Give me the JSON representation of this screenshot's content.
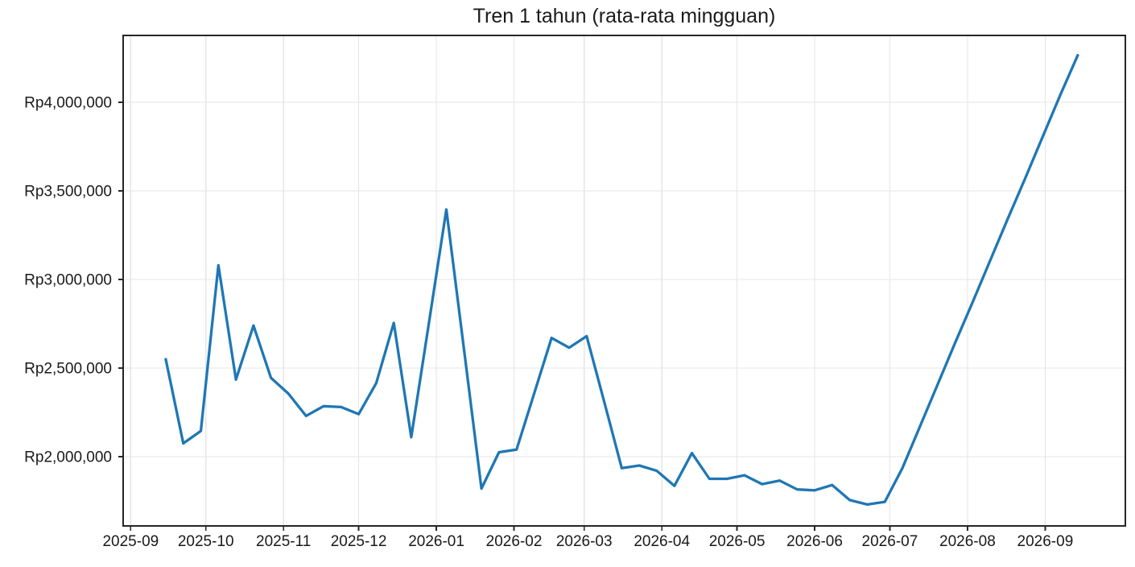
{
  "chart_data": {
    "type": "line",
    "title": "Tren 1 tahun (rata-rata mingguan)",
    "legend": "none",
    "grid": true,
    "grid_color": "#e5e5e5",
    "axis_color": "#262626",
    "background_color": "#ffffff",
    "x_axis": {
      "kind": "date",
      "range": [
        "2025-08-29",
        "2026-10-03"
      ],
      "ticks": [
        {
          "date": "2025-09-01",
          "label": "2025-09"
        },
        {
          "date": "2025-10-01",
          "label": "2025-10"
        },
        {
          "date": "2025-11-01",
          "label": "2025-11"
        },
        {
          "date": "2025-12-01",
          "label": "2025-12"
        },
        {
          "date": "2026-01-01",
          "label": "2026-01"
        },
        {
          "date": "2026-02-01",
          "label": "2026-02"
        },
        {
          "date": "2026-03-01",
          "label": "2026-03"
        },
        {
          "date": "2026-04-01",
          "label": "2026-04"
        },
        {
          "date": "2026-05-01",
          "label": "2026-05"
        },
        {
          "date": "2026-06-01",
          "label": "2026-06"
        },
        {
          "date": "2026-07-01",
          "label": "2026-07"
        },
        {
          "date": "2026-08-01",
          "label": "2026-08"
        },
        {
          "date": "2026-09-01",
          "label": "2026-09"
        }
      ]
    },
    "y_axis": {
      "kind": "currency_idr",
      "range": [
        1609000,
        4377000
      ],
      "ticks": [
        {
          "value": 2000000,
          "label": "Rp2,000,000"
        },
        {
          "value": 2500000,
          "label": "Rp2,500,000"
        },
        {
          "value": 3000000,
          "label": "Rp3,000,000"
        },
        {
          "value": 3500000,
          "label": "Rp3,500,000"
        },
        {
          "value": 4000000,
          "label": "Rp4,000,000"
        }
      ]
    },
    "series": [
      {
        "name": "rata-rata mingguan",
        "color": "#1f77b4",
        "points": [
          {
            "date": "2025-09-15",
            "value": 2550000
          },
          {
            "date": "2025-09-22",
            "value": 2075000
          },
          {
            "date": "2025-09-29",
            "value": 2145000
          },
          {
            "date": "2025-10-06",
            "value": 3080000
          },
          {
            "date": "2025-10-13",
            "value": 2435000
          },
          {
            "date": "2025-10-20",
            "value": 2740000
          },
          {
            "date": "2025-10-27",
            "value": 2445000
          },
          {
            "date": "2025-11-03",
            "value": 2355000
          },
          {
            "date": "2025-11-10",
            "value": 2230000
          },
          {
            "date": "2025-11-17",
            "value": 2285000
          },
          {
            "date": "2025-11-24",
            "value": 2280000
          },
          {
            "date": "2025-12-01",
            "value": 2240000
          },
          {
            "date": "2025-12-08",
            "value": 2415000
          },
          {
            "date": "2025-12-15",
            "value": 2755000
          },
          {
            "date": "2025-12-22",
            "value": 2110000
          },
          {
            "date": "2025-12-29",
            "value": 2750000
          },
          {
            "date": "2026-01-05",
            "value": 3395000
          },
          {
            "date": "2026-01-12",
            "value": 2610000
          },
          {
            "date": "2026-01-19",
            "value": 1820000
          },
          {
            "date": "2026-01-26",
            "value": 2025000
          },
          {
            "date": "2026-02-02",
            "value": 2040000
          },
          {
            "date": "2026-02-09",
            "value": 2355000
          },
          {
            "date": "2026-02-16",
            "value": 2670000
          },
          {
            "date": "2026-02-23",
            "value": 2615000
          },
          {
            "date": "2026-03-02",
            "value": 2680000
          },
          {
            "date": "2026-03-09",
            "value": 2310000
          },
          {
            "date": "2026-03-16",
            "value": 1935000
          },
          {
            "date": "2026-03-23",
            "value": 1950000
          },
          {
            "date": "2026-03-30",
            "value": 1920000
          },
          {
            "date": "2026-04-06",
            "value": 1835000
          },
          {
            "date": "2026-04-13",
            "value": 2020000
          },
          {
            "date": "2026-04-20",
            "value": 1875000
          },
          {
            "date": "2026-04-27",
            "value": 1875000
          },
          {
            "date": "2026-05-04",
            "value": 1895000
          },
          {
            "date": "2026-05-11",
            "value": 1845000
          },
          {
            "date": "2026-05-18",
            "value": 1865000
          },
          {
            "date": "2026-05-25",
            "value": 1815000
          },
          {
            "date": "2026-06-01",
            "value": 1810000
          },
          {
            "date": "2026-06-08",
            "value": 1840000
          },
          {
            "date": "2026-06-15",
            "value": 1755000
          },
          {
            "date": "2026-06-22",
            "value": 1730000
          },
          {
            "date": "2026-06-29",
            "value": 1745000
          },
          {
            "date": "2026-07-06",
            "value": 1935000
          },
          {
            "date": "2026-07-13",
            "value": 2170000
          },
          {
            "date": "2026-07-20",
            "value": 2405000
          },
          {
            "date": "2026-07-27",
            "value": 2640000
          },
          {
            "date": "2026-08-03",
            "value": 2870000
          },
          {
            "date": "2026-08-10",
            "value": 3105000
          },
          {
            "date": "2026-08-17",
            "value": 3340000
          },
          {
            "date": "2026-08-24",
            "value": 3570000
          },
          {
            "date": "2026-08-31",
            "value": 3805000
          },
          {
            "date": "2026-09-07",
            "value": 4040000
          },
          {
            "date": "2026-09-14",
            "value": 4265000
          }
        ]
      }
    ]
  }
}
